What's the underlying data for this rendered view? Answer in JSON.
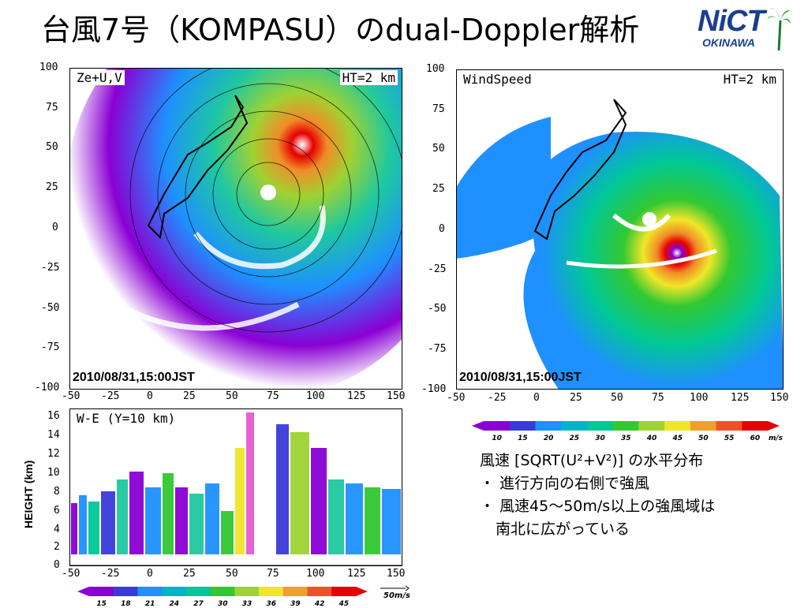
{
  "title": "台風7号（KOMPASU）のdual-Doppler解析",
  "logo": {
    "main": "NiCT",
    "sub": "OKINAWA"
  },
  "left_panel": {
    "label": "Ze+U,V",
    "height": "HT=2 km",
    "timestamp": "2010/08/31,15:00JST",
    "yticks": [
      "100",
      "75",
      "50",
      "25",
      "0",
      "-25",
      "-50",
      "-75",
      "-100"
    ],
    "xticks": [
      "-50",
      "-25",
      "0",
      "25",
      "50",
      "75",
      "100",
      "125",
      "150"
    ]
  },
  "right_panel": {
    "label": "WindSpeed",
    "height": "HT=2 km",
    "timestamp": "2010/08/31,15:00JST",
    "yticks": [
      "100",
      "75",
      "50",
      "25",
      "0",
      "-25",
      "-50",
      "-75",
      "-100"
    ],
    "xticks": [
      "-50",
      "-25",
      "0",
      "25",
      "50",
      "75",
      "100",
      "125",
      "150"
    ]
  },
  "section_panel": {
    "label": "W-E (Y=10 km)",
    "ylabel": "HEIGHT (km)",
    "yticks": [
      "16",
      "14",
      "12",
      "10",
      "8",
      "6",
      "4",
      "2",
      "0"
    ],
    "xticks": [
      "-50",
      "-25",
      "0",
      "25",
      "50",
      "75",
      "100",
      "125",
      "150"
    ],
    "vector_scale": "50m/s"
  },
  "colorbar_speed": {
    "labels": [
      "10",
      "15",
      "20",
      "25",
      "30",
      "35",
      "40",
      "45",
      "50",
      "55",
      "60"
    ],
    "unit": "m/s"
  },
  "colorbar_refl": {
    "labels": [
      "15",
      "18",
      "21",
      "24",
      "27",
      "30",
      "33",
      "36",
      "39",
      "42",
      "45"
    ]
  },
  "description": {
    "line1": "風速 [SQRT(U²+V²)] の水平分布",
    "line2": "・ 進行方向の右側で強風",
    "line3": "・ 風速45～50m/s以上の強風域は",
    "line4": "南北に広がっている"
  },
  "colors": {
    "scale": [
      "#8a00d4",
      "#3a3adc",
      "#1e90ff",
      "#00b4c8",
      "#00c896",
      "#32c832",
      "#a0d232",
      "#f0e628",
      "#f0a028",
      "#f05028",
      "#e60000"
    ]
  }
}
